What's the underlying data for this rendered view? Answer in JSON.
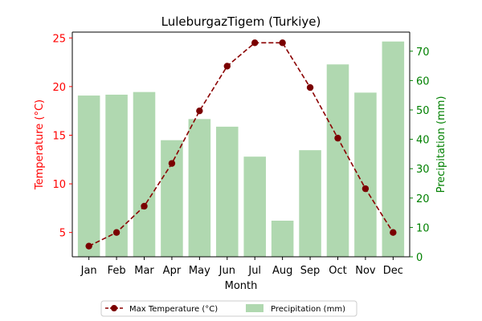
{
  "chart_data": {
    "type": "bar+line",
    "title": "LuleburgazTigem (Turkiye)",
    "xlabel": "Month",
    "categories": [
      "Jan",
      "Feb",
      "Mar",
      "Apr",
      "May",
      "Jun",
      "Jul",
      "Aug",
      "Sep",
      "Oct",
      "Nov",
      "Dec"
    ],
    "series": [
      {
        "name": "Max Temperature (°C)",
        "type": "line",
        "axis": "left",
        "values": [
          3.6,
          5.0,
          7.7,
          12.1,
          17.5,
          22.1,
          24.5,
          24.5,
          19.9,
          14.7,
          9.5,
          5.0
        ]
      },
      {
        "name": "Precipitation (mm)",
        "type": "bar",
        "axis": "right",
        "values": [
          54.9,
          55.2,
          56.1,
          39.7,
          46.9,
          44.3,
          34.1,
          12.3,
          36.3,
          65.5,
          55.9,
          73.3
        ]
      }
    ],
    "ylabel_left": "Temperature (°C)",
    "ylabel_right": "Precipitation (mm)",
    "ylim_left": [
      2.5,
      25.6
    ],
    "ylim_right": [
      0,
      76.5
    ],
    "yticks_left": [
      5,
      10,
      15,
      20,
      25
    ],
    "yticks_right": [
      0,
      10,
      20,
      30,
      40,
      50,
      60,
      70
    ],
    "grid": false,
    "legend_position": "bottom-center",
    "colors": {
      "temperature_line": "#8b0000",
      "temperature_marker": "#7a0000",
      "precip_bar": "#b0d8b0",
      "left_axis": "#ff0000",
      "right_axis": "#008000"
    }
  }
}
